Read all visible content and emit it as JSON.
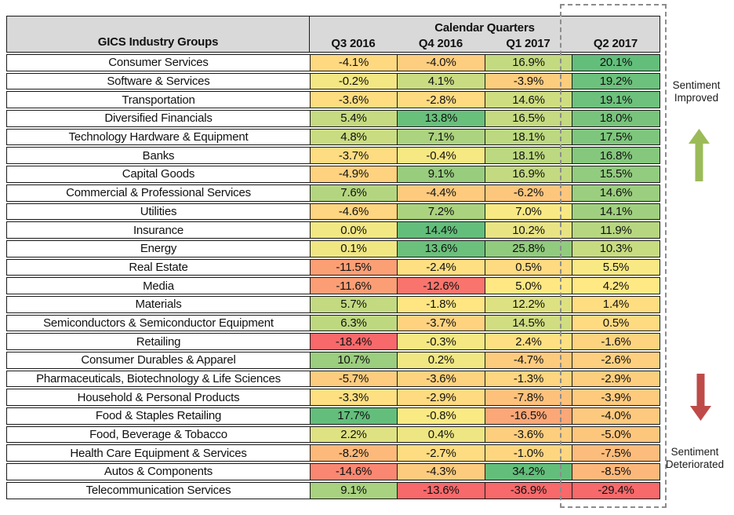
{
  "table": {
    "gics_label": "GICS Industry Groups",
    "group_label": "Calendar Quarters"
  },
  "annotations": {
    "improved": "Sentiment Improved",
    "deteriorated": "Sentiment Deteriorated"
  },
  "colors": {
    "header_bg": "#D9D9D9",
    "border": "#1A1A1A",
    "name_cell_bg": "#FFFFFF",
    "text": "#111111",
    "dashed_box": "#8C8C8C",
    "up_arrow": "#9BBB59",
    "down_arrow": "#BE4B48",
    "scale_min": "#F8696B",
    "scale_mid": "#FFEB84",
    "scale_max": "#63BE7B"
  },
  "chart_data": {
    "type": "heatmap",
    "title": "Calendar Quarters",
    "row_header": "GICS Industry Groups",
    "columns": [
      "Q3 2016",
      "Q4 2016",
      "Q1 2017",
      "Q2 2017"
    ],
    "rows": [
      "Consumer Services",
      "Software & Services",
      "Transportation",
      "Diversified Financials",
      "Technology Hardware & Equipment",
      "Banks",
      "Capital Goods",
      "Commercial & Professional Services",
      "Utilities",
      "Insurance",
      "Energy",
      "Real Estate",
      "Media",
      "Materials",
      "Semiconductors & Semiconductor Equipment",
      "Retailing",
      "Consumer Durables & Apparel",
      "Pharmaceuticals, Biotechnology & Life Sciences",
      "Household & Personal Products",
      "Food & Staples Retailing",
      "Food, Beverage & Tobacco",
      "Health Care Equipment & Services",
      "Autos & Components",
      "Telecommunication Services"
    ],
    "values": [
      [
        -4.1,
        -4.0,
        16.9,
        20.1
      ],
      [
        -0.2,
        4.1,
        -3.9,
        19.2
      ],
      [
        -3.6,
        -2.8,
        14.6,
        19.1
      ],
      [
        5.4,
        13.8,
        16.5,
        18.0
      ],
      [
        4.8,
        7.1,
        18.1,
        17.5
      ],
      [
        -3.7,
        -0.4,
        18.1,
        16.8
      ],
      [
        -4.9,
        9.1,
        16.9,
        15.5
      ],
      [
        7.6,
        -4.4,
        -6.2,
        14.6
      ],
      [
        -4.6,
        7.2,
        7.0,
        14.1
      ],
      [
        0.0,
        14.4,
        10.2,
        11.9
      ],
      [
        0.1,
        13.6,
        25.8,
        10.3
      ],
      [
        -11.5,
        -2.4,
        0.5,
        5.5
      ],
      [
        -11.6,
        -12.6,
        5.0,
        4.2
      ],
      [
        5.7,
        -1.8,
        12.2,
        1.4
      ],
      [
        6.3,
        -3.7,
        14.5,
        0.5
      ],
      [
        -18.4,
        -0.3,
        2.4,
        -1.6
      ],
      [
        10.7,
        0.2,
        -4.7,
        -2.6
      ],
      [
        -5.7,
        -3.6,
        -1.3,
        -2.9
      ],
      [
        -3.3,
        -2.9,
        -7.8,
        -3.9
      ],
      [
        17.7,
        -0.8,
        -16.5,
        -4.0
      ],
      [
        2.2,
        0.4,
        -3.6,
        -5.0
      ],
      [
        -8.2,
        -2.7,
        -1.0,
        -7.5
      ],
      [
        -14.6,
        -4.3,
        34.2,
        -8.5
      ],
      [
        9.1,
        -13.6,
        -36.9,
        -29.4
      ]
    ],
    "value_suffix": "%",
    "value_decimals": 1,
    "colorscale": {
      "per_column": true,
      "midpoint": "50th-percentile",
      "min_color": "#F8696B",
      "mid_color": "#FFEB84",
      "max_color": "#63BE7B"
    },
    "highlighted_column": "Q2 2017",
    "annotations": [
      "Sentiment Improved",
      "Sentiment Deteriorated"
    ]
  }
}
